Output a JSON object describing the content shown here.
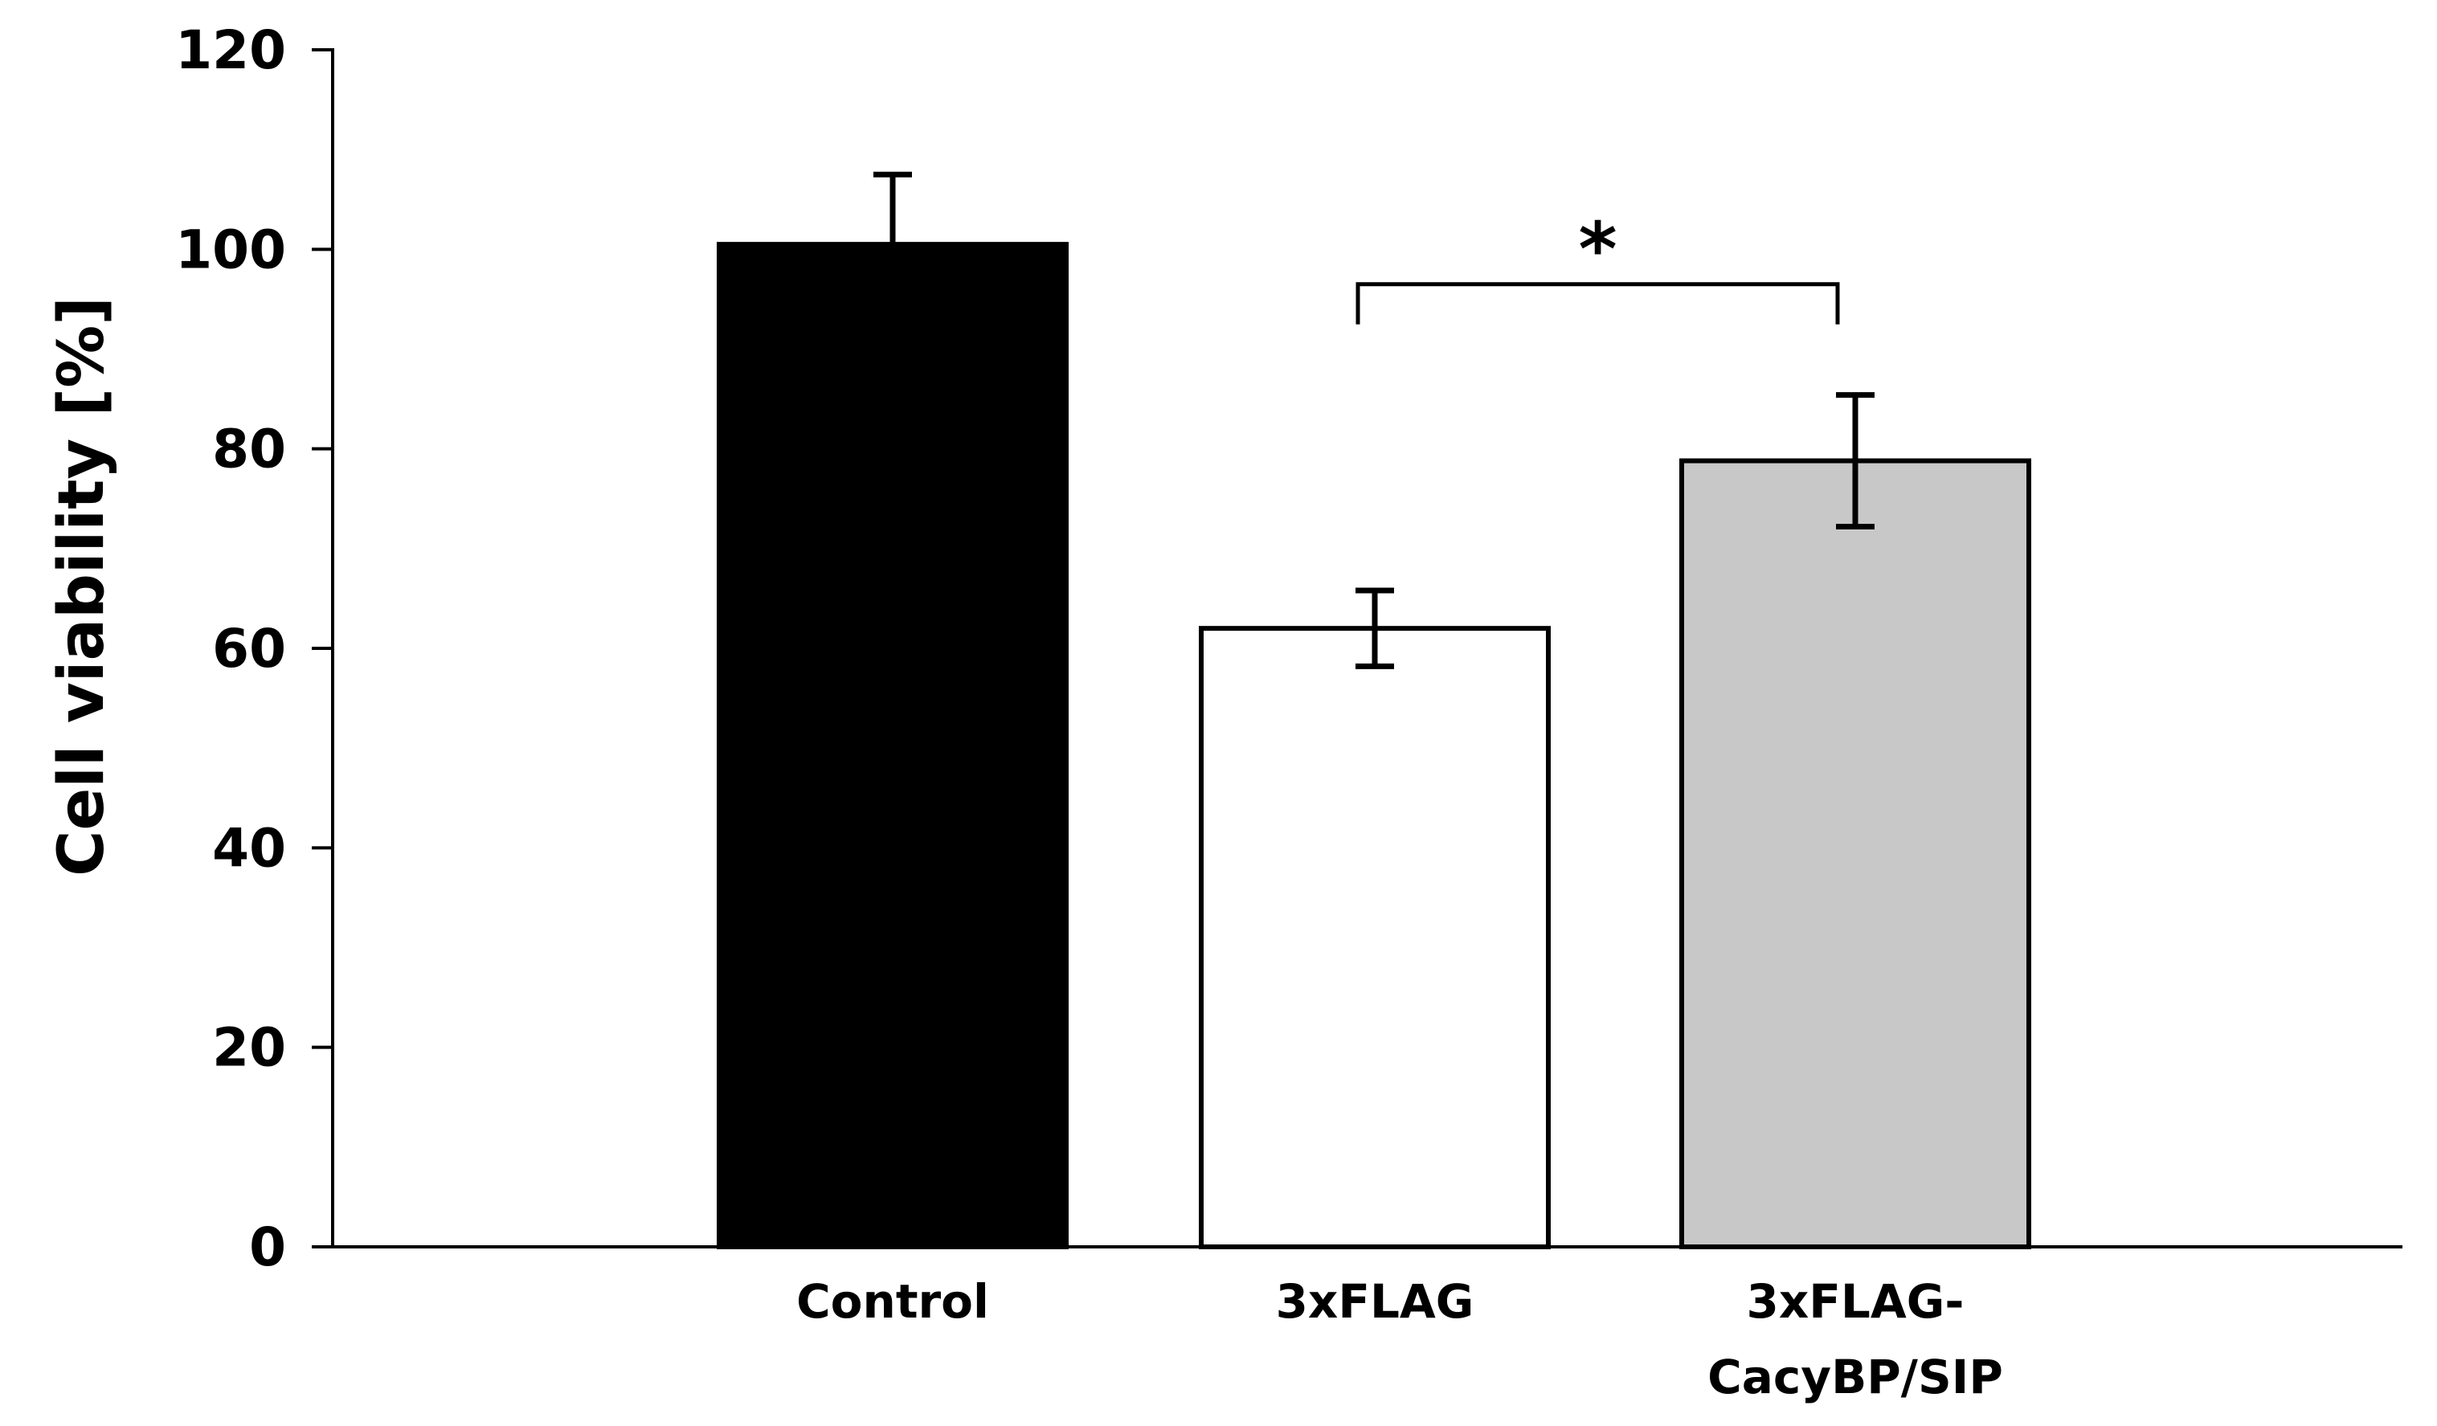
{
  "chart_data": {
    "type": "bar",
    "title": "",
    "xlabel": "",
    "ylabel": "Cell viability [%]",
    "ylim": [
      0,
      120
    ],
    "yticks": [
      0,
      20,
      40,
      60,
      80,
      100,
      120
    ],
    "grid": false,
    "legend": "none",
    "categories": [
      {
        "label_lines": [
          "Control"
        ],
        "value": 100.5,
        "error": 7,
        "color": "#000000"
      },
      {
        "label_lines": [
          "3xFLAG"
        ],
        "value": 62,
        "error": 3.8,
        "color": "#ffffff"
      },
      {
        "label_lines": [
          "3xFLAG-",
          "CacyBP/SIP"
        ],
        "value": 78.8,
        "error": 6.6,
        "color": "#c8c8c8"
      }
    ],
    "significance": [
      {
        "from": 1,
        "to": 2,
        "label": "*",
        "level": 96.5
      }
    ]
  }
}
